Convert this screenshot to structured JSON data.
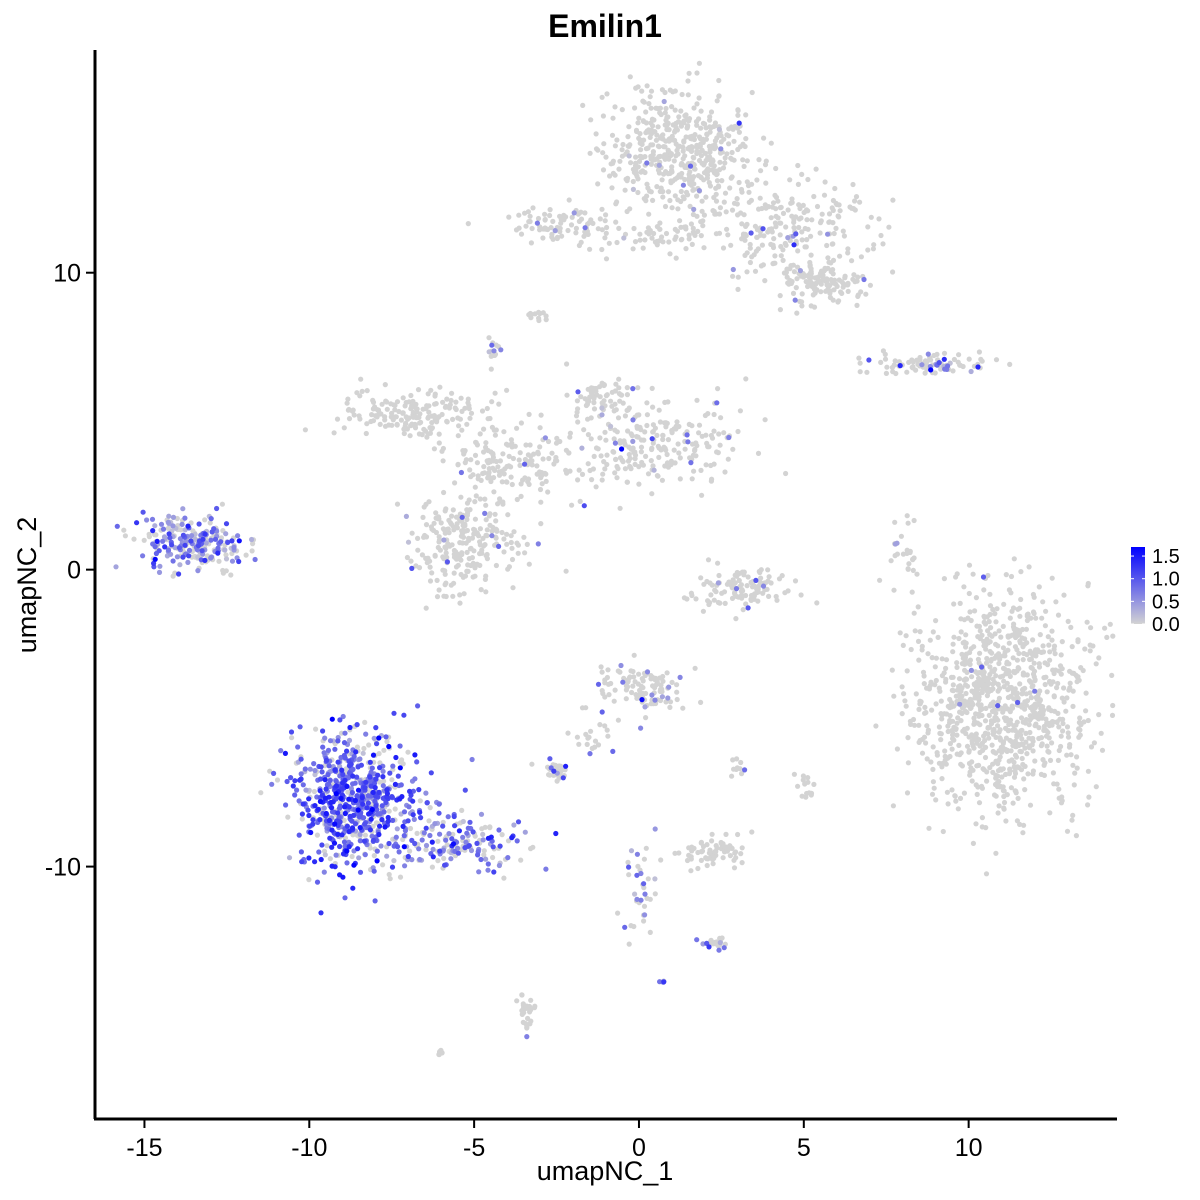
{
  "chart_data": {
    "type": "scatter",
    "title": "Emilin1",
    "xlabel": "umapNC_1",
    "ylabel": "umapNC_2",
    "xlim": [
      -16.5,
      14.5
    ],
    "ylim": [
      -18.5,
      17.5
    ],
    "x_ticks": [
      -15,
      -10,
      -5,
      0,
      5,
      10
    ],
    "x_tick_labels": [
      "-15",
      "-10",
      "-5",
      "0",
      "5",
      "10"
    ],
    "y_ticks": [
      -10,
      0,
      10
    ],
    "y_tick_labels": [
      "-10",
      "0",
      "10"
    ],
    "grid": false,
    "color_scale": {
      "low_color": "#d3d3d3",
      "high_color": "#0000ff",
      "min": 0,
      "max": 1.7,
      "legend_ticks": [
        0.0,
        0.5,
        1.0,
        1.5
      ],
      "legend_tick_labels": [
        "0.0",
        "0.5",
        "1.0",
        "1.5"
      ],
      "legend_position": "right"
    },
    "clusters": [
      {
        "id": "top-big-blob",
        "cx": 1.2,
        "cy": 14.0,
        "sx": 1.3,
        "sy": 1.2,
        "n": 500,
        "expr_frac": 0.02,
        "expr_mean": 0.6
      },
      {
        "id": "top-right-arm",
        "cx": 4.5,
        "cy": 11.5,
        "sx": 1.6,
        "sy": 1.0,
        "n": 220,
        "expr_frac": 0.03,
        "expr_mean": 0.6
      },
      {
        "id": "top-right-tail",
        "cx": 5.6,
        "cy": 9.6,
        "sx": 0.7,
        "sy": 0.4,
        "n": 120,
        "expr_frac": 0.02,
        "expr_mean": 0.6
      },
      {
        "id": "top-left-arm",
        "cx": -2.3,
        "cy": 11.6,
        "sx": 0.9,
        "sy": 0.4,
        "n": 90,
        "expr_frac": 0.05,
        "expr_mean": 0.6
      },
      {
        "id": "top-mid-link",
        "cx": 0.8,
        "cy": 11.3,
        "sx": 1.0,
        "sy": 0.3,
        "n": 50,
        "expr_frac": 0.03,
        "expr_mean": 0.6
      },
      {
        "id": "small-8",
        "cx": -3.1,
        "cy": 8.6,
        "sx": 0.2,
        "sy": 0.1,
        "n": 12,
        "expr_frac": 0.0,
        "expr_mean": 0.5
      },
      {
        "id": "small-7",
        "cx": -4.4,
        "cy": 7.3,
        "sx": 0.15,
        "sy": 0.25,
        "n": 14,
        "expr_frac": 0.3,
        "expr_mean": 0.6
      },
      {
        "id": "right-strip",
        "cx": 8.8,
        "cy": 6.9,
        "sx": 1.1,
        "sy": 0.22,
        "n": 90,
        "expr_frac": 0.2,
        "expr_mean": 0.7
      },
      {
        "id": "mid-left-branch",
        "cx": -6.8,
        "cy": 5.2,
        "sx": 1.3,
        "sy": 0.5,
        "n": 180,
        "expr_frac": 0.0,
        "expr_mean": 0.5
      },
      {
        "id": "mid-center-branch",
        "cx": -4.0,
        "cy": 3.5,
        "sx": 1.2,
        "sy": 0.8,
        "n": 160,
        "expr_frac": 0.01,
        "expr_mean": 0.5
      },
      {
        "id": "mid-right-branch",
        "cx": 0.5,
        "cy": 4.2,
        "sx": 1.6,
        "sy": 0.9,
        "n": 230,
        "expr_frac": 0.06,
        "expr_mean": 0.7
      },
      {
        "id": "mid-up-branch",
        "cx": -1.1,
        "cy": 5.7,
        "sx": 0.5,
        "sy": 0.5,
        "n": 60,
        "expr_frac": 0.08,
        "expr_mean": 0.7
      },
      {
        "id": "mid-lower-lobe",
        "cx": -5.3,
        "cy": 0.8,
        "sx": 1.1,
        "sy": 1.0,
        "n": 230,
        "expr_frac": 0.03,
        "expr_mean": 0.6
      },
      {
        "id": "far-left",
        "cx": -13.5,
        "cy": 0.9,
        "sx": 0.9,
        "sy": 0.55,
        "n": 250,
        "expr_frac": 0.55,
        "expr_mean": 0.7
      },
      {
        "id": "center-arc",
        "cx": 3.2,
        "cy": -0.6,
        "sx": 0.9,
        "sy": 0.45,
        "n": 110,
        "expr_frac": 0.04,
        "expr_mean": 0.6
      },
      {
        "id": "right-thin",
        "cx": 8.1,
        "cy": 0.3,
        "sx": 0.25,
        "sy": 0.9,
        "n": 28,
        "expr_frac": 0.05,
        "expr_mean": 0.6
      },
      {
        "id": "right-big-blob",
        "cx": 11.0,
        "cy": -4.6,
        "sx": 1.6,
        "sy": 2.0,
        "n": 1000,
        "expr_frac": 0.008,
        "expr_mean": 0.7
      },
      {
        "id": "center-small",
        "cx": 0.0,
        "cy": -3.9,
        "sx": 0.8,
        "sy": 0.5,
        "n": 110,
        "expr_frac": 0.12,
        "expr_mean": 0.8
      },
      {
        "id": "bottom-left-main",
        "cx": -8.6,
        "cy": -7.8,
        "sx": 1.1,
        "sy": 1.3,
        "n": 700,
        "expr_frac": 0.75,
        "expr_mean": 0.95
      },
      {
        "id": "bottom-left-tail",
        "cx": -5.6,
        "cy": -9.2,
        "sx": 1.2,
        "sy": 0.5,
        "n": 170,
        "expr_frac": 0.6,
        "expr_mean": 0.75
      },
      {
        "id": "small-bl-a",
        "cx": -2.6,
        "cy": -6.8,
        "sx": 0.3,
        "sy": 0.2,
        "n": 30,
        "expr_frac": 0.2,
        "expr_mean": 0.7
      },
      {
        "id": "small-bl-b",
        "cx": -1.3,
        "cy": -5.6,
        "sx": 0.4,
        "sy": 0.4,
        "n": 20,
        "expr_frac": 0.1,
        "expr_mean": 0.6
      },
      {
        "id": "small-3",
        "cx": 3.0,
        "cy": -6.5,
        "sx": 0.1,
        "sy": 0.2,
        "n": 10,
        "expr_frac": 0.1,
        "expr_mean": 0.6
      },
      {
        "id": "small-4",
        "cx": 5.1,
        "cy": -7.3,
        "sx": 0.2,
        "sy": 0.3,
        "n": 14,
        "expr_frac": 0.0,
        "expr_mean": 0.5
      },
      {
        "id": "bottom-center",
        "cx": 2.3,
        "cy": -9.5,
        "sx": 0.7,
        "sy": 0.35,
        "n": 70,
        "expr_frac": 0.01,
        "expr_mean": 0.5
      },
      {
        "id": "bottom-stick",
        "cx": 0.0,
        "cy": -10.8,
        "sx": 0.3,
        "sy": 1.0,
        "n": 36,
        "expr_frac": 0.25,
        "expr_mean": 0.6
      },
      {
        "id": "bottom-stick2",
        "cx": 2.2,
        "cy": -12.6,
        "sx": 0.25,
        "sy": 0.12,
        "n": 22,
        "expr_frac": 0.45,
        "expr_mean": 0.8
      },
      {
        "id": "bottom-tiny",
        "cx": 0.7,
        "cy": -13.9,
        "sx": 0.05,
        "sy": 0.05,
        "n": 5,
        "expr_frac": 1.0,
        "expr_mean": 0.8
      },
      {
        "id": "bottom-far",
        "cx": -3.4,
        "cy": -14.9,
        "sx": 0.15,
        "sy": 0.4,
        "n": 30,
        "expr_frac": 0.03,
        "expr_mean": 0.6
      },
      {
        "id": "bottom-dot",
        "cx": -6.0,
        "cy": -16.3,
        "sx": 0.1,
        "sy": 0.08,
        "n": 8,
        "expr_frac": 0.0,
        "expr_mean": 0.5
      }
    ]
  }
}
